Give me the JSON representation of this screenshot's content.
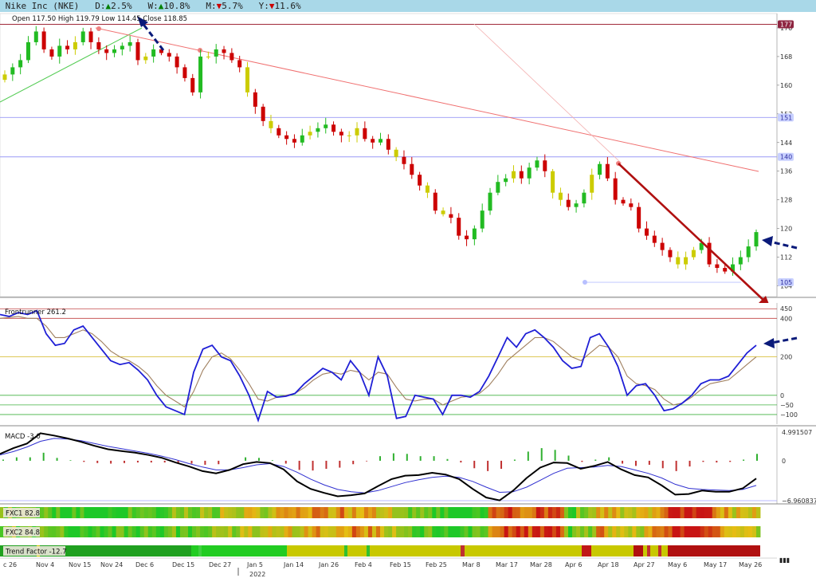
{
  "header": {
    "title": "Nike Inc (NKE)",
    "d_label": "D:",
    "d_arrow": "▲",
    "d_value": "2.5%",
    "d_color": "#008000",
    "w_label": "W:",
    "w_arrow": "▲",
    "w_value": "10.8%",
    "w_color": "#008000",
    "m_label": "M:",
    "m_arrow": "▼",
    "m_value": "5.7%",
    "m_color": "#cc0000",
    "y_label": "Y:",
    "y_arrow": "▼",
    "y_value": "11.6%",
    "y_color": "#cc0000"
  },
  "ohlc_text": "Open 117.50  High 119.79  Low 114.45  Close 118.85",
  "chart_data": [
    {
      "type": "candlestick",
      "title": "",
      "ylim": [
        101,
        180
      ],
      "yticks": [
        104,
        112,
        120,
        128,
        136,
        144,
        152,
        160,
        168,
        176
      ],
      "price_labels": [
        {
          "value": 177,
          "text": "177",
          "color": "#a0304a"
        },
        {
          "value": 151,
          "text": "151",
          "color": "#8080ff"
        },
        {
          "value": 140,
          "text": "140",
          "color": "#8080ff"
        },
        {
          "value": 105,
          "text": "105",
          "color": "#8080ff"
        }
      ],
      "horizontal_lines": [
        177,
        151,
        140,
        105
      ],
      "closes": [
        163,
        165,
        167,
        172,
        175,
        170,
        168,
        171,
        170,
        172,
        175,
        172,
        170,
        169,
        170,
        171,
        172,
        167,
        168,
        170,
        169,
        168,
        165,
        162,
        158,
        168,
        168,
        170,
        169,
        167,
        165,
        158,
        154,
        150,
        148,
        146,
        145,
        144,
        146,
        147,
        148,
        149,
        147,
        146,
        146,
        148,
        145,
        144,
        145,
        142,
        140,
        138,
        135,
        132,
        130,
        125,
        124,
        123,
        118,
        117,
        120,
        125,
        130,
        133,
        134,
        136,
        134,
        137,
        139,
        136,
        130,
        128,
        126,
        127,
        130,
        135,
        138,
        134,
        128,
        127,
        126,
        120,
        118,
        116,
        114,
        112,
        110,
        112,
        114,
        116,
        110,
        109,
        108,
        110,
        112,
        115,
        119
      ]
    },
    {
      "type": "line",
      "title": "Frontrunner 261.2",
      "ylim": [
        -150,
        480
      ],
      "yticks": [
        450,
        400,
        200,
        0,
        -50,
        -100
      ],
      "series": [
        {
          "name": "",
          "color": "#1f1fd6",
          "values": [
            420,
            410,
            430,
            420,
            440,
            320,
            260,
            270,
            340,
            360,
            300,
            240,
            180,
            160,
            170,
            130,
            80,
            0,
            -60,
            -80,
            -100,
            120,
            240,
            260,
            200,
            180,
            100,
            0,
            -130,
            20,
            -10,
            -5,
            10,
            60,
            100,
            140,
            120,
            80,
            180,
            120,
            0,
            200,
            100,
            -120,
            -110,
            0,
            -10,
            -20,
            -100,
            0,
            0,
            -10,
            20,
            100,
            200,
            300,
            250,
            320,
            340,
            300,
            250,
            180,
            140,
            150,
            300,
            320,
            250,
            150,
            0,
            50,
            60,
            0,
            -80,
            -70,
            -40,
            0,
            60,
            80,
            80,
            100,
            160,
            220,
            260
          ]
        },
        {
          "name": "",
          "color": "#a08060",
          "values": [
            400,
            405,
            410,
            400,
            400,
            360,
            300,
            300,
            320,
            340,
            320,
            280,
            230,
            200,
            180,
            150,
            110,
            50,
            0,
            -30,
            -60,
            20,
            130,
            200,
            220,
            190,
            130,
            60,
            -20,
            -30,
            -10,
            0,
            10,
            40,
            80,
            110,
            120,
            110,
            130,
            120,
            80,
            120,
            110,
            40,
            -20,
            -30,
            -20,
            -20,
            -50,
            -30,
            -10,
            -5,
            10,
            50,
            110,
            180,
            220,
            260,
            300,
            300,
            280,
            240,
            200,
            180,
            220,
            260,
            250,
            200,
            100,
            60,
            50,
            30,
            -20,
            -50,
            -40,
            -10,
            30,
            60,
            70,
            80,
            120,
            160,
            200
          ]
        }
      ],
      "annotations": []
    },
    {
      "type": "line",
      "title": "MACD -3.0",
      "ylim": [
        -6.960837,
        4.991507
      ],
      "yticks": [
        4.991507,
        0,
        -6.960837
      ],
      "series": [
        {
          "name": "",
          "color": "#000000",
          "values": [
            1.2,
            2.2,
            3.0,
            4.8,
            4.4,
            3.9,
            3.3,
            2.6,
            2.0,
            1.7,
            1.4,
            1.0,
            0.5,
            -0.3,
            -1.0,
            -1.8,
            -2.2,
            -1.6,
            -0.6,
            -0.2,
            -0.4,
            -1.5,
            -3.6,
            -4.9,
            -5.6,
            -6.2,
            -6.0,
            -5.7,
            -4.4,
            -3.2,
            -2.6,
            -2.5,
            -2.1,
            -2.4,
            -3.2,
            -4.9,
            -6.4,
            -6.9,
            -5.2,
            -3.0,
            -1.2,
            -0.3,
            -0.4,
            -1.4,
            -0.9,
            -0.2,
            -1.5,
            -2.5,
            -2.9,
            -4.3,
            -5.9,
            -5.8,
            -5.2,
            -5.4,
            -5.4,
            -4.8,
            -3.1
          ]
        },
        {
          "name": "",
          "color": "#3030d0",
          "values": [
            1.0,
            1.6,
            2.4,
            3.4,
            3.9,
            3.8,
            3.5,
            3.0,
            2.5,
            2.1,
            1.7,
            1.3,
            0.8,
            0.2,
            -0.5,
            -1.1,
            -1.6,
            -1.6,
            -1.2,
            -0.7,
            -0.5,
            -1.0,
            -2.0,
            -3.2,
            -4.2,
            -5.0,
            -5.4,
            -5.6,
            -5.2,
            -4.5,
            -3.8,
            -3.3,
            -2.9,
            -2.7,
            -2.9,
            -3.6,
            -4.6,
            -5.5,
            -5.4,
            -4.6,
            -3.4,
            -2.2,
            -1.3,
            -1.2,
            -1.1,
            -0.8,
            -1.0,
            -1.6,
            -2.2,
            -3.0,
            -4.1,
            -4.8,
            -5.0,
            -5.1,
            -5.2,
            -5.0,
            -4.3
          ]
        }
      ],
      "histogram": [
        0.2,
        0.6,
        0.6,
        1.4,
        0.5,
        0.1,
        -0.2,
        -0.4,
        -0.5,
        -0.4,
        -0.3,
        -0.3,
        -0.3,
        -0.5,
        -0.5,
        -0.7,
        -0.6,
        0.0,
        0.6,
        0.5,
        0.1,
        -0.5,
        -1.6,
        -1.7,
        -1.4,
        -1.2,
        -0.6,
        -0.1,
        0.8,
        1.3,
        1.2,
        0.8,
        0.8,
        0.3,
        -0.3,
        -1.3,
        -1.8,
        -1.4,
        0.2,
        1.6,
        2.2,
        1.9,
        0.9,
        -0.2,
        0.2,
        0.6,
        -0.5,
        -0.9,
        -0.7,
        -1.3,
        -1.8,
        -1.0,
        -0.2,
        -0.3,
        -0.2,
        0.2,
        1.2
      ]
    },
    {
      "type": "heatmap",
      "rows": [
        {
          "title": "FXC1 82.8"
        },
        {
          "title": "FXC2 84.8"
        },
        {
          "title": "Trend Factor -12.7"
        }
      ]
    }
  ],
  "x_axis": {
    "ticks": [
      "c 26",
      "Nov 4",
      "Nov 15",
      "Nov 24",
      "Dec 6",
      "Dec 15",
      "Dec 27",
      "Jan 5",
      "Jan 14",
      "Jan 26",
      "Feb 4",
      "Feb 15",
      "Feb 25",
      "Mar 8",
      "Mar 17",
      "Mar 28",
      "Apr 6",
      "Apr 18",
      "Apr 27",
      "May 6",
      "May 17",
      "May 26"
    ],
    "year_label": "2022"
  },
  "colors": {
    "up": "#22bb22",
    "down": "#cc0000",
    "neutral": "#cccc00",
    "arrow": "#0a1a7a",
    "trend_arrow": "#b01010"
  }
}
